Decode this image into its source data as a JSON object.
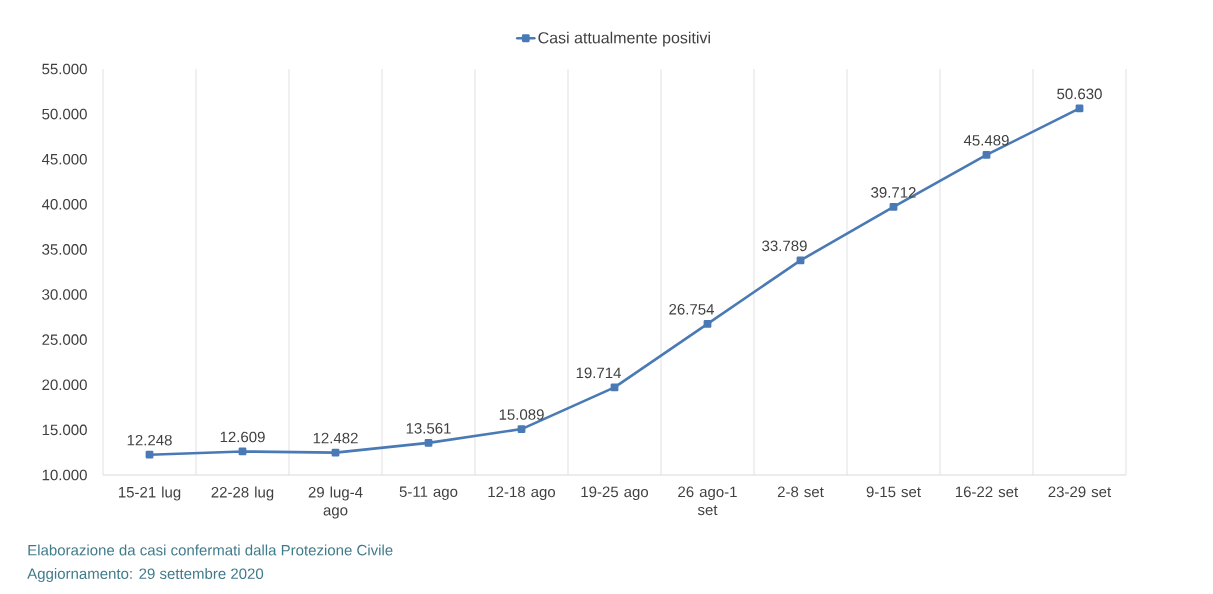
{
  "chart_data": {
    "type": "line",
    "categories": [
      "15-21 lug",
      "22-28 lug",
      "29 lug-4 ago",
      "5-11 ago",
      "12-18 ago",
      "19-25 ago",
      "26 ago-1 set",
      "2-8 set",
      "9-15 set",
      "16-22 set",
      "23-29 set"
    ],
    "series": [
      {
        "name": "Casi attualmente positivi",
        "color": "#4a7ab5",
        "values": [
          12248,
          12609,
          12482,
          13561,
          15089,
          19714,
          26754,
          33789,
          39712,
          45489,
          50630
        ],
        "value_labels": [
          "12.248",
          "12.609",
          "12.482",
          "13.561",
          "15.089",
          "19.714",
          "26.754",
          "33.789",
          "39.712",
          "45.489",
          "50.630"
        ]
      }
    ],
    "ylim": [
      10000,
      55000
    ],
    "yticks": [
      {
        "value": 10000,
        "label": "10.000"
      },
      {
        "value": 15000,
        "label": "15.000"
      },
      {
        "value": 20000,
        "label": "20.000"
      },
      {
        "value": 25000,
        "label": "25.000"
      },
      {
        "value": 30000,
        "label": "30.000"
      },
      {
        "value": 35000,
        "label": "35.000"
      },
      {
        "value": 40000,
        "label": "40.000"
      },
      {
        "value": 45000,
        "label": "45.000"
      },
      {
        "value": 50000,
        "label": "50.000"
      },
      {
        "value": 55000,
        "label": "55.000"
      }
    ],
    "grid": "x",
    "legend": "top",
    "marker": "square",
    "line_style": "solid",
    "annotations": [
      "Elaborazione da casi confermati dalla Protezione Civile",
      "Aggiornamento: 29 settembre 2020"
    ]
  }
}
